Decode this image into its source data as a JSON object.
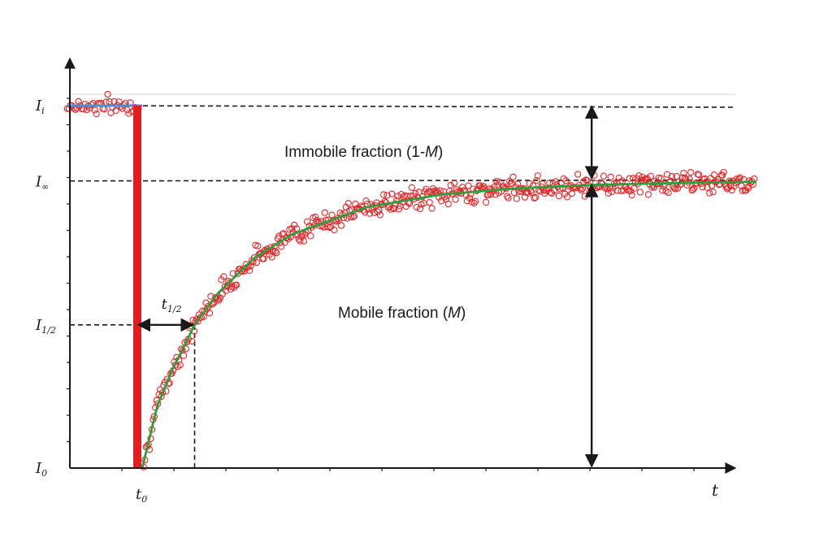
{
  "chart_data": {
    "type": "scatter",
    "title": "",
    "xlabel": "t",
    "ylabel": "",
    "grid": false,
    "legend": "none",
    "x_ticks": [
      {
        "base": "t",
        "sub": "0",
        "value": 0
      },
      {
        "base": "t",
        "sub": "",
        "value": "axis-label"
      }
    ],
    "y_ticks": [
      {
        "base": "I",
        "sub": "i",
        "value": 1.0
      },
      {
        "base": "I",
        "sub": "∞",
        "value": 0.79
      },
      {
        "base": "I",
        "sub": "1/2",
        "value": 0.395
      },
      {
        "base": "I",
        "sub": "0",
        "value": 0.0
      }
    ],
    "xlim": [
      -1,
      8.2
    ],
    "ylim": [
      0,
      1.05
    ],
    "t_half": 0.7,
    "annotations": {
      "immobile": {
        "pre": "Immobile fraction (1-",
        "var": "M",
        "post": ")"
      },
      "mobile": {
        "pre": "Mobile fraction (",
        "var": "M",
        "post": ")"
      },
      "t_half_label": {
        "base": "t",
        "sub": "1/2"
      }
    },
    "series": [
      {
        "kind": "scatter",
        "color": "#e0282b",
        "marker": "circle-open",
        "description_segments": [
          "pre-bleach at I_i",
          "recovery toward I_inf"
        ]
      },
      {
        "kind": "line",
        "color": "#2e9e3e",
        "model": "exponential recovery",
        "x": [
          0,
          0.2,
          0.4,
          0.7,
          1,
          1.5,
          2,
          3,
          4,
          5,
          6,
          7,
          8.2
        ],
        "y": [
          0.0,
          0.17,
          0.27,
          0.395,
          0.48,
          0.58,
          0.645,
          0.72,
          0.755,
          0.772,
          0.781,
          0.786,
          0.79
        ]
      },
      {
        "kind": "line",
        "color": "#4a90d0",
        "segment": "pre-bleach baseline",
        "x": [
          -1,
          0
        ],
        "y": [
          1.0,
          1.0
        ]
      },
      {
        "kind": "bar",
        "color": "#e02020",
        "segment": "bleach event",
        "x": [
          0
        ],
        "y": [
          1.0
        ]
      }
    ]
  },
  "colors": {
    "data_points": "#e0282b",
    "fit_line": "#2e9e3e",
    "baseline": "#4a90d0",
    "bleach_bar": "#e02020",
    "axis": "#1a1a1a"
  }
}
